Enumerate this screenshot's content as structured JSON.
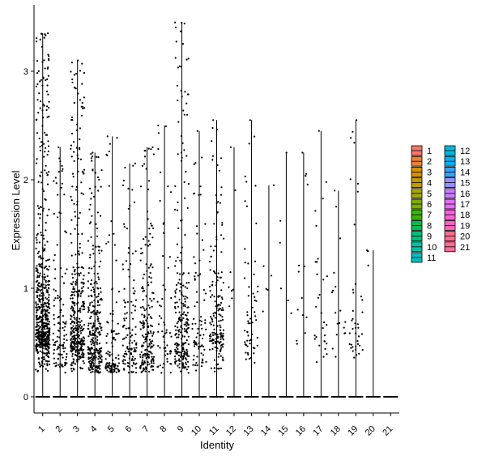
{
  "chart_data": {
    "type": "violin",
    "title": "",
    "xlabel": "Identity",
    "ylabel": "Expression Level",
    "ylim": [
      -0.15,
      3.6
    ],
    "y_ticks": [
      0,
      1,
      2,
      3
    ],
    "grid": false,
    "legend_position": "right",
    "categories": [
      "1",
      "2",
      "3",
      "4",
      "5",
      "6",
      "7",
      "8",
      "9",
      "10",
      "11",
      "12",
      "13",
      "14",
      "15",
      "16",
      "17",
      "18",
      "19",
      "20",
      "21"
    ],
    "colors": [
      "#F8766D",
      "#EA8331",
      "#D89000",
      "#C09B00",
      "#A3A500",
      "#7CAE00",
      "#39B600",
      "#00BB4E",
      "#00BF7D",
      "#00C1A3",
      "#00BFC4",
      "#00BAE0",
      "#00B0F6",
      "#35A2FF",
      "#9590FF",
      "#C77CFF",
      "#E76BF3",
      "#FA62DB",
      "#FF62BC",
      "#FF6C91",
      "#FF6C91"
    ],
    "series": [
      {
        "name": "1",
        "max": 3.35,
        "n_points": 600,
        "mode": 0.6
      },
      {
        "name": "2",
        "max": 2.3,
        "n_points": 120,
        "mode": 0.5
      },
      {
        "name": "3",
        "max": 3.1,
        "n_points": 380,
        "mode": 0.55
      },
      {
        "name": "4",
        "max": 2.25,
        "n_points": 300,
        "mode": 0.45
      },
      {
        "name": "5",
        "max": 2.4,
        "n_points": 110,
        "mode": 0.3
      },
      {
        "name": "6",
        "max": 2.15,
        "n_points": 120,
        "mode": 0.45
      },
      {
        "name": "7",
        "max": 2.3,
        "n_points": 200,
        "mode": 0.4
      },
      {
        "name": "8",
        "max": 2.5,
        "n_points": 60,
        "mode": 0.5
      },
      {
        "name": "9",
        "max": 3.45,
        "n_points": 250,
        "mode": 0.5
      },
      {
        "name": "10",
        "max": 2.45,
        "n_points": 80,
        "mode": 0.5
      },
      {
        "name": "11",
        "max": 2.55,
        "n_points": 180,
        "mode": 0.6
      },
      {
        "name": "12",
        "max": 2.3,
        "n_points": 8,
        "mode": 1.0
      },
      {
        "name": "13",
        "max": 2.55,
        "n_points": 60,
        "mode": 0.6
      },
      {
        "name": "14",
        "max": 1.95,
        "n_points": 6,
        "mode": 1.0
      },
      {
        "name": "15",
        "max": 2.25,
        "n_points": 6,
        "mode": 1.0
      },
      {
        "name": "16",
        "max": 2.25,
        "n_points": 14,
        "mode": 0.8
      },
      {
        "name": "17",
        "max": 2.45,
        "n_points": 30,
        "mode": 0.6
      },
      {
        "name": "18",
        "max": 1.9,
        "n_points": 18,
        "mode": 0.7
      },
      {
        "name": "19",
        "max": 2.55,
        "n_points": 40,
        "mode": 0.5
      },
      {
        "name": "20",
        "max": 1.35,
        "n_points": 3,
        "mode": 1.0
      },
      {
        "name": "21",
        "max": 0.0,
        "n_points": 0,
        "mode": 0.0
      }
    ],
    "legend_columns": [
      [
        "1",
        "2",
        "3",
        "4",
        "5",
        "6",
        "7",
        "8",
        "9",
        "10",
        "11"
      ],
      [
        "12",
        "13",
        "14",
        "15",
        "16",
        "17",
        "18",
        "19",
        "20",
        "21"
      ]
    ]
  }
}
